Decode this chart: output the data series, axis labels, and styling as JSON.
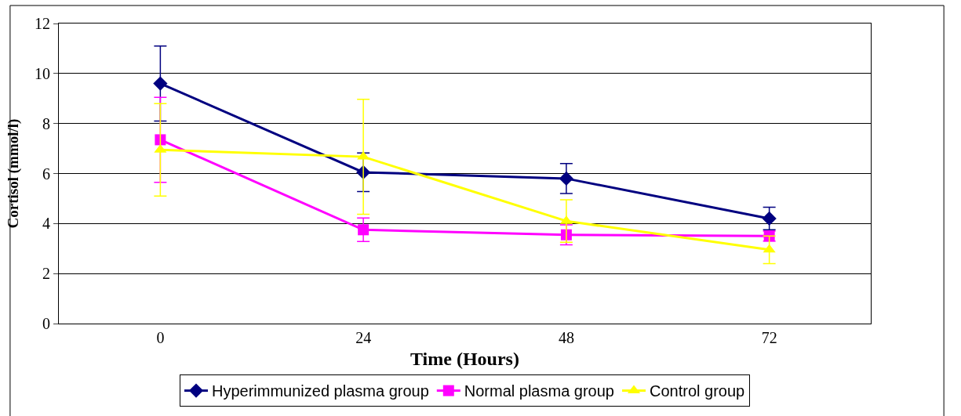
{
  "chart_data": {
    "type": "line",
    "xlabel": "Time (Hours)",
    "ylabel": "Cortisol (mmol/l)",
    "categories": [
      "0",
      "24",
      "48",
      "72"
    ],
    "ylim": [
      0,
      12
    ],
    "yticks": [
      0,
      2,
      4,
      6,
      8,
      10,
      12
    ],
    "grid": "y",
    "legend": "bottom",
    "line_style": "solid",
    "series": [
      {
        "name": "Hyperimmunized plasma group",
        "color": "#000080",
        "marker": "diamond",
        "values": [
          9.6,
          6.05,
          5.8,
          4.2
        ],
        "errors": [
          1.5,
          0.77,
          0.6,
          0.45
        ]
      },
      {
        "name": "Normal plasma group",
        "color": "#ff00ff",
        "marker": "square",
        "values": [
          7.35,
          3.75,
          3.55,
          3.5
        ],
        "errors": [
          1.7,
          0.47,
          0.4,
          0.2
        ]
      },
      {
        "name": "Control group",
        "color": "#ffff00",
        "marker": "triangle",
        "values": [
          6.95,
          6.67,
          4.1,
          2.95
        ],
        "errors": [
          1.85,
          2.3,
          0.85,
          0.55
        ]
      }
    ]
  }
}
